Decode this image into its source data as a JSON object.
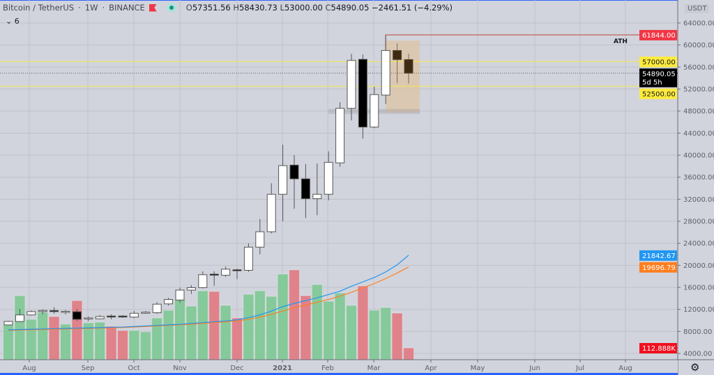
{
  "header": {
    "symbol": "Bitcoin / TetherUS",
    "interval": "1W",
    "exchange": "BINANCE",
    "open_label": "O",
    "open": "57351.56",
    "high_label": "H",
    "high": "58430.73",
    "low_label": "L",
    "low": "53000.00",
    "close_label": "C",
    "close": "54890.05",
    "change": "−2461.51 (−4.29%)",
    "indicator_toggle": "⌄ 6"
  },
  "currency": "USDT",
  "colors": {
    "up": "#ffffff",
    "down": "#000000",
    "vol_up": "#86c99a",
    "vol_down": "#e0828a",
    "ma_fast": "#2196f3",
    "ma_slow": "#ff7f20",
    "ath": "#f23645",
    "level": "#ffeb3b",
    "zone": "#e0c3a0"
  },
  "chart_data": {
    "type": "candlestick",
    "yaxis": {
      "ticks": [
        "64000.00",
        "60000.00",
        "56000.00",
        "52000.00",
        "48000.00",
        "44000.00",
        "40000.00",
        "36000.00",
        "32000.00",
        "28000.00",
        "24000.00",
        "20000.00",
        "16000.00",
        "12000.00",
        "8000.00",
        "4000.00"
      ],
      "ylim": [
        3000,
        66500
      ]
    },
    "xaxis": {
      "labels": [
        "Aug",
        "Sep",
        "Oct",
        "Nov",
        "Dec",
        "2021",
        "Feb",
        "Mar",
        "Apr",
        "May",
        "Jun",
        "Jul",
        "Aug"
      ]
    },
    "candles": [
      {
        "o": 9185,
        "h": 9950,
        "l": 9100,
        "c": 9817
      },
      {
        "o": 9800,
        "h": 12100,
        "l": 9700,
        "c": 11000
      },
      {
        "o": 11000,
        "h": 11800,
        "l": 10900,
        "c": 11600
      },
      {
        "o": 11600,
        "h": 12000,
        "l": 11100,
        "c": 11800
      },
      {
        "o": 11800,
        "h": 12400,
        "l": 11200,
        "c": 11600
      },
      {
        "o": 11600,
        "h": 11900,
        "l": 11100,
        "c": 11650
      },
      {
        "o": 11580,
        "h": 12100,
        "l": 9900,
        "c": 10200
      },
      {
        "o": 10300,
        "h": 10700,
        "l": 9900,
        "c": 10450
      },
      {
        "o": 10300,
        "h": 11000,
        "l": 10200,
        "c": 10700
      },
      {
        "o": 10800,
        "h": 11100,
        "l": 10200,
        "c": 10700
      },
      {
        "o": 10800,
        "h": 10950,
        "l": 10500,
        "c": 10750
      },
      {
        "o": 10600,
        "h": 11700,
        "l": 10400,
        "c": 11300
      },
      {
        "o": 11300,
        "h": 11700,
        "l": 11200,
        "c": 11500
      },
      {
        "o": 11400,
        "h": 13300,
        "l": 11200,
        "c": 12950
      },
      {
        "o": 13000,
        "h": 14100,
        "l": 12700,
        "c": 13800
      },
      {
        "o": 13700,
        "h": 15950,
        "l": 13200,
        "c": 15500
      },
      {
        "o": 15500,
        "h": 16400,
        "l": 14800,
        "c": 15950
      },
      {
        "o": 15950,
        "h": 18900,
        "l": 15800,
        "c": 18300
      },
      {
        "o": 18400,
        "h": 18900,
        "l": 16300,
        "c": 18200
      },
      {
        "o": 18200,
        "h": 19800,
        "l": 17900,
        "c": 19300
      },
      {
        "o": 19200,
        "h": 19400,
        "l": 17500,
        "c": 19100
      },
      {
        "o": 19100,
        "h": 24000,
        "l": 18800,
        "c": 23300
      },
      {
        "o": 23300,
        "h": 28400,
        "l": 22000,
        "c": 26100
      },
      {
        "o": 26100,
        "h": 34900,
        "l": 25800,
        "c": 32900
      },
      {
        "o": 32900,
        "h": 41900,
        "l": 28000,
        "c": 38100
      },
      {
        "o": 38200,
        "h": 40000,
        "l": 30300,
        "c": 35700
      },
      {
        "o": 35700,
        "h": 38400,
        "l": 28600,
        "c": 32100
      },
      {
        "o": 32100,
        "h": 38500,
        "l": 29100,
        "c": 32900
      },
      {
        "o": 32900,
        "h": 40700,
        "l": 31800,
        "c": 38700
      },
      {
        "o": 38600,
        "h": 49600,
        "l": 37900,
        "c": 48500
      },
      {
        "o": 48500,
        "h": 58400,
        "l": 46300,
        "c": 57200
      },
      {
        "o": 57400,
        "h": 58300,
        "l": 43000,
        "c": 45100
      },
      {
        "o": 45100,
        "h": 52400,
        "l": 44900,
        "c": 51000
      },
      {
        "o": 50900,
        "h": 61844,
        "l": 49300,
        "c": 59000
      },
      {
        "o": 59000,
        "h": 60300,
        "l": 53100,
        "c": 57350
      },
      {
        "o": 57351.56,
        "h": 58430.73,
        "l": 53000,
        "c": 54890.05
      }
    ],
    "volume_k": [
      332,
      611,
      385,
      451,
      412,
      339,
      564,
      352,
      358,
      319,
      279,
      279,
      266,
      398,
      471,
      578,
      511,
      657,
      651,
      518,
      398,
      624,
      657,
      604,
      817,
      857,
      611,
      717,
      558,
      637,
      518,
      704,
      471,
      498,
      445,
      112.888
    ],
    "ma_fast": [
      8300,
      8350,
      8400,
      8450,
      8500,
      8550,
      8600,
      8650,
      8700,
      8750,
      8800,
      8900,
      9000,
      9100,
      9200,
      9300,
      9450,
      9600,
      9750,
      9900,
      10100,
      10500,
      11000,
      11700,
      12500,
      13100,
      13600,
      14100,
      14700,
      15300,
      16200,
      17000,
      17800,
      18800,
      20100,
      21842.67
    ],
    "ma_slow": [
      8200,
      8250,
      8300,
      8350,
      8400,
      8450,
      8500,
      8550,
      8600,
      8650,
      8700,
      8800,
      8900,
      9000,
      9100,
      9200,
      9300,
      9450,
      9600,
      9750,
      9900,
      10200,
      10600,
      11100,
      11700,
      12300,
      12800,
      13300,
      13800,
      14400,
      15100,
      15900,
      16700,
      17600,
      18600,
      19696.79
    ],
    "levels": {
      "ath": 61844,
      "resistance": 57000,
      "support": 52500,
      "last": 54890.05,
      "zone_top": 60800,
      "zone_bottom": 48000
    },
    "annotations": {
      "ath_label": "ATH"
    },
    "price_labels": {
      "ath": "61844.00",
      "resistance": "57000.00",
      "last": "54890.05",
      "countdown": "5d 5h",
      "support": "52500.00",
      "ma_fast": "21842.67",
      "ma_slow": "19696.79",
      "volume": "112.888K"
    }
  }
}
